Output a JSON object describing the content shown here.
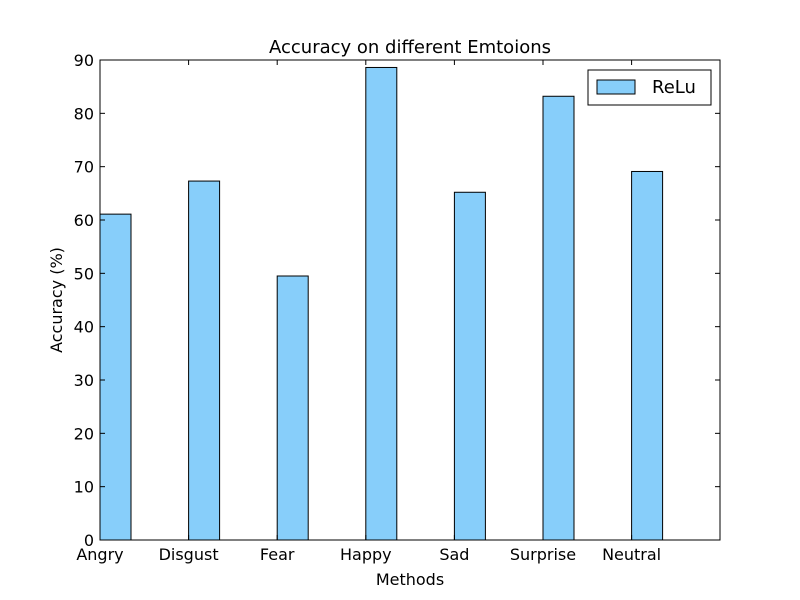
{
  "chart_data": {
    "type": "bar",
    "title": "Accuracy on different Emtoions",
    "xlabel": "Methods",
    "ylabel": "Accuracy (%)",
    "categories": [
      "Angry",
      "Disgust",
      "Fear",
      "Happy",
      "Sad",
      "Surprise",
      "Neutral"
    ],
    "series": [
      {
        "name": "ReLu",
        "values": [
          61.1,
          67.3,
          49.5,
          88.6,
          65.2,
          83.2,
          69.1
        ]
      }
    ],
    "ylim": [
      0,
      90
    ],
    "yticks": [
      0,
      10,
      20,
      30,
      40,
      50,
      60,
      70,
      80,
      90
    ],
    "bar_color": "#87cefa",
    "legend": "top-right",
    "grid": false
  }
}
